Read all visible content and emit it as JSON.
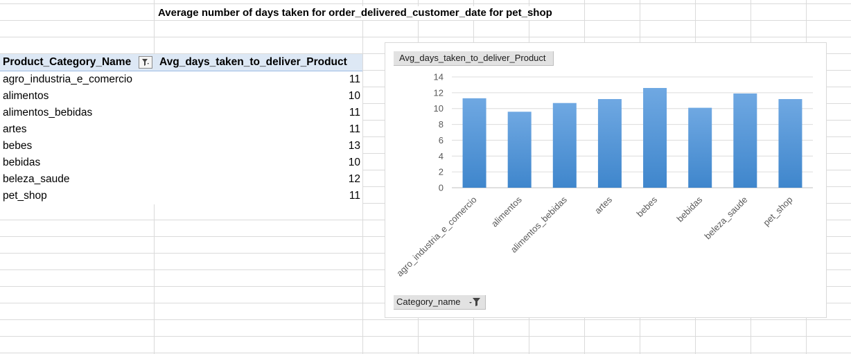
{
  "sheet": {
    "title": "Average number of days taken for order_delivered_customer_date for pet_shop"
  },
  "pivot": {
    "header_category": "Product_Category_Name",
    "header_value": "Avg_days_taken_to_deliver_Product",
    "filter_icon": "filter-dropdown-icon",
    "rows": [
      {
        "name": "agro_industria_e_comercio",
        "value": "11"
      },
      {
        "name": "alimentos",
        "value": "10"
      },
      {
        "name": "alimentos_bebidas",
        "value": "11"
      },
      {
        "name": "artes",
        "value": "11"
      },
      {
        "name": "bebes",
        "value": "13"
      },
      {
        "name": "bebidas",
        "value": "10"
      },
      {
        "name": "beleza_saude",
        "value": "12"
      },
      {
        "name": "pet_shop",
        "value": "11"
      }
    ]
  },
  "chart": {
    "value_field_button": "Avg_days_taken_to_deliver_Product",
    "axis_field_button": "Category_name",
    "axis_field_icon": "filter-dropdown-icon",
    "bar_color_top": "#6fa8e2",
    "bar_color_bottom": "#3f86cc"
  },
  "chart_data": {
    "type": "bar",
    "title": "",
    "xlabel": "",
    "ylabel": "",
    "categories": [
      "agro_industria_e_comercio",
      "alimentos",
      "alimentos_bebidas",
      "artes",
      "bebes",
      "bebidas",
      "beleza_saude",
      "pet_shop"
    ],
    "series": [
      {
        "name": "Avg_days_taken_to_deliver_Product",
        "values": [
          11.3,
          9.6,
          10.7,
          11.2,
          12.6,
          10.1,
          11.9,
          11.2
        ]
      }
    ],
    "ylim": [
      0,
      14
    ],
    "yticks": [
      0,
      2,
      4,
      6,
      8,
      10,
      12,
      14
    ],
    "grid": true,
    "legend": "none"
  }
}
